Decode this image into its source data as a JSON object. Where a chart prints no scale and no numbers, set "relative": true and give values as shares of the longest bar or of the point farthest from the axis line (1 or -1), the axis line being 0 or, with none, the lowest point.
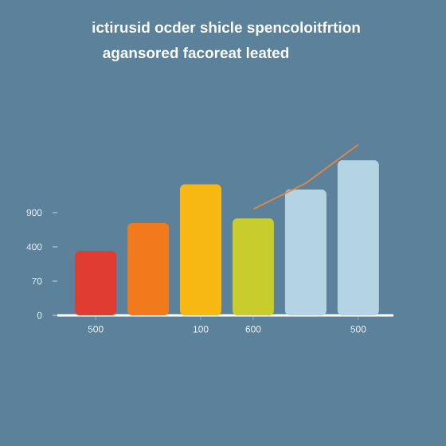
{
  "chart_data": {
    "type": "bar",
    "title": "ictirusid ocder shicle spencoloitfrtion",
    "subtitle": "agansored facoreat leated",
    "categories": [
      "500",
      null,
      "100",
      "600",
      null,
      "500"
    ],
    "relative": true,
    "series": [
      {
        "values": [
          0.378,
          0.541,
          0.767,
          0.568,
          0.736,
          0.908
        ],
        "colors": [
          "#e03c31",
          "#f07a1c",
          "#f8b814",
          "#c8cc2c",
          "#b4d4e4",
          "#b4d4e4"
        ]
      },
      {
        "type": "line",
        "values": [
          null,
          null,
          null,
          0.622,
          0.773,
          1
        ],
        "color": "#d9874a"
      }
    ],
    "annotations": [
      "0",
      "70",
      "400",
      "900"
    ]
  }
}
